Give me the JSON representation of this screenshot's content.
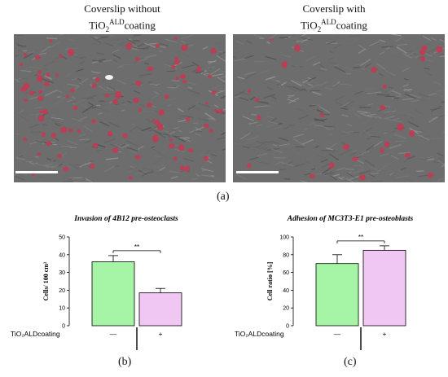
{
  "figure": {
    "left_caption_line1": "Coverslip without",
    "left_caption_chem": "TiO",
    "left_caption_sub": "2",
    "left_caption_sup": "ALD",
    "left_caption_rest": "coating",
    "right_caption_line1": "Coverslip with",
    "right_caption_chem": "TiO",
    "right_caption_sub": "2",
    "right_caption_sup": "ALD",
    "right_caption_rest": "coating",
    "label_a": "(a)",
    "label_b": "(b)",
    "label_c": "(c)"
  },
  "colors": {
    "bar_without": "#a6f4a6",
    "bar_with": "#f0c6f2",
    "cell_stain": "#c23a52",
    "micro_bg": "#6d6d6d"
  },
  "chart_data": [
    {
      "type": "bar",
      "title": "Invasion of 4B12 pre-osteoclasts",
      "ylabel": "Cells/ 100 cm²",
      "ylim": [
        0,
        50
      ],
      "yticks": [
        0,
        10,
        20,
        30,
        40,
        50
      ],
      "condition_label": "TiO₂ALDcoating",
      "categories": [
        "—",
        "+"
      ],
      "values": [
        36,
        18.5
      ],
      "errors": [
        3.5,
        2.5
      ],
      "significance": "**"
    },
    {
      "type": "bar",
      "title": "Adhesion of MC3T3-E1 pre-osteoblasts",
      "ylabel": "Cell ratio [%]",
      "ylim": [
        0,
        100
      ],
      "yticks": [
        0,
        20,
        40,
        60,
        80,
        100
      ],
      "condition_label": "TiO₂ALDcoating",
      "categories": [
        "—",
        "+"
      ],
      "values": [
        70,
        85
      ],
      "errors": [
        10,
        5
      ],
      "significance": "**"
    }
  ]
}
